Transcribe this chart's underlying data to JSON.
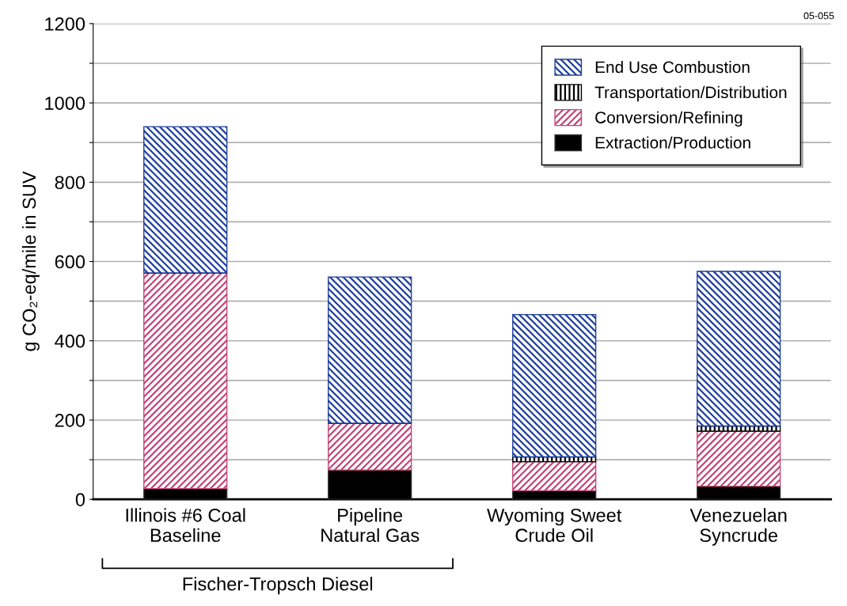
{
  "chart_data": {
    "type": "bar",
    "stacked": true,
    "ylabel": "g CO₂-eq/mile in SUV",
    "categories": [
      "Illinois #6 Coal\nBaseline",
      "Pipeline\nNatural Gas",
      "Wyoming Sweet\nCrude Oil",
      "Venezuelan\nSyncrude"
    ],
    "series": [
      {
        "name": "Extraction/Production",
        "color": "#000000",
        "values": [
          27,
          74,
          22,
          33
        ]
      },
      {
        "name": "Conversion/Refining",
        "color": "#c0467a",
        "values": [
          544,
          118,
          73,
          139
        ]
      },
      {
        "name": "Transportation/Distribution",
        "color": "#000000",
        "values": [
          0,
          0,
          12,
          13
        ]
      },
      {
        "name": "End Use Combustion",
        "color": "#1f3f99",
        "values": [
          369,
          369,
          359,
          390
        ]
      }
    ],
    "ylim": [
      0,
      1200
    ],
    "yticks": [
      0,
      {
        "value": 100,
        "label": null
      },
      200,
      {
        "value": 300,
        "label": null
      },
      400,
      {
        "value": 500,
        "label": null
      },
      600,
      {
        "value": 700,
        "label": null
      },
      800,
      {
        "value": 900,
        "label": null
      },
      1000,
      {
        "value": 1100,
        "label": null
      },
      1200
    ],
    "grid": "y",
    "legend": "top right",
    "annotations": [
      "Fischer-Tropsch Diesel",
      "05-055"
    ]
  }
}
